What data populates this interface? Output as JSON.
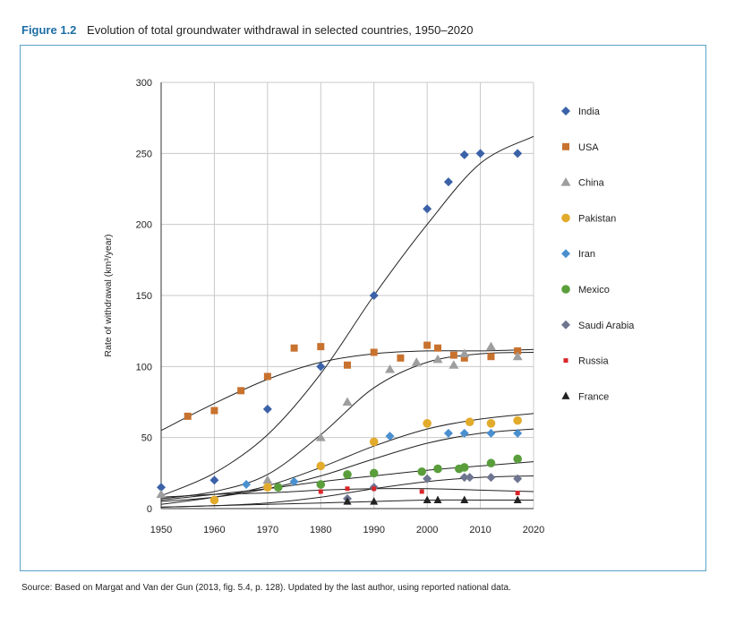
{
  "figure": {
    "number": "Figure 1.2",
    "title": "Evolution of total groundwater withdrawal in selected countries, 1950–2020",
    "source": "Source: Based on Margat and Van der Gun (2013, fig. 5.4, p. 128). Updated by the last author, using reported national data."
  },
  "colors": {
    "accent": "#1c6ea4",
    "frame": "#5ba3c9"
  },
  "chart_data": {
    "type": "scatter",
    "title": "",
    "xlabel": "",
    "ylabel": "Rate of withdrawal (km³/year)",
    "xlim": [
      1950,
      2020
    ],
    "ylim": [
      0,
      300
    ],
    "xticks": [
      1950,
      1960,
      1970,
      1980,
      1990,
      2000,
      2010,
      2020
    ],
    "yticks": [
      0,
      50,
      100,
      150,
      200,
      250,
      300
    ],
    "grid": true,
    "legend_position": "right",
    "series": [
      {
        "name": "India",
        "marker": "diamond",
        "color": "#3b62a8",
        "points": [
          [
            1950,
            15
          ],
          [
            1960,
            20
          ],
          [
            1970,
            70
          ],
          [
            1980,
            100
          ],
          [
            1990,
            150
          ],
          [
            2000,
            211
          ],
          [
            2004,
            230
          ],
          [
            2007,
            249
          ],
          [
            2010,
            250
          ],
          [
            2017,
            250
          ]
        ],
        "trend": [
          [
            1950,
            9
          ],
          [
            1960,
            25
          ],
          [
            1970,
            52
          ],
          [
            1980,
            95
          ],
          [
            1990,
            150
          ],
          [
            2000,
            200
          ],
          [
            2010,
            243
          ],
          [
            2020,
            262
          ]
        ]
      },
      {
        "name": "USA",
        "marker": "square",
        "color": "#c8722f",
        "points": [
          [
            1955,
            65
          ],
          [
            1960,
            69
          ],
          [
            1965,
            83
          ],
          [
            1970,
            93
          ],
          [
            1975,
            113
          ],
          [
            1980,
            114
          ],
          [
            1985,
            101
          ],
          [
            1990,
            110
          ],
          [
            1995,
            106
          ],
          [
            2000,
            115
          ],
          [
            2002,
            113
          ],
          [
            2005,
            108
          ],
          [
            2007,
            106
          ],
          [
            2012,
            107
          ],
          [
            2017,
            111
          ]
        ],
        "trend": [
          [
            1950,
            55
          ],
          [
            1960,
            74
          ],
          [
            1970,
            91
          ],
          [
            1980,
            103
          ],
          [
            1990,
            109
          ],
          [
            2000,
            111
          ],
          [
            2010,
            111
          ],
          [
            2020,
            112
          ]
        ]
      },
      {
        "name": "China",
        "marker": "triangle",
        "color": "#9e9e9e",
        "points": [
          [
            1950,
            10
          ],
          [
            1970,
            20
          ],
          [
            1980,
            50
          ],
          [
            1985,
            75
          ],
          [
            1993,
            98
          ],
          [
            1998,
            103
          ],
          [
            2002,
            105
          ],
          [
            2005,
            101
          ],
          [
            2007,
            109
          ],
          [
            2012,
            114
          ],
          [
            2017,
            107
          ]
        ],
        "trend": [
          [
            1950,
            7
          ],
          [
            1960,
            12
          ],
          [
            1970,
            24
          ],
          [
            1980,
            52
          ],
          [
            1990,
            85
          ],
          [
            2000,
            103
          ],
          [
            2010,
            109
          ],
          [
            2020,
            110
          ]
        ]
      },
      {
        "name": "Pakistan",
        "marker": "circle",
        "color": "#e2ab2b",
        "points": [
          [
            1960,
            6
          ],
          [
            1970,
            15
          ],
          [
            1980,
            30
          ],
          [
            1990,
            47
          ],
          [
            2000,
            60
          ],
          [
            2008,
            61
          ],
          [
            2012,
            60
          ],
          [
            2017,
            62
          ]
        ],
        "trend": [
          [
            1950,
            3
          ],
          [
            1960,
            8
          ],
          [
            1970,
            16
          ],
          [
            1980,
            29
          ],
          [
            1990,
            44
          ],
          [
            2000,
            56
          ],
          [
            2010,
            63
          ],
          [
            2020,
            67
          ]
        ]
      },
      {
        "name": "Iran",
        "marker": "diamond",
        "color": "#4a90cf",
        "points": [
          [
            1966,
            17
          ],
          [
            1975,
            19
          ],
          [
            1980,
            17
          ],
          [
            1993,
            51
          ],
          [
            2004,
            53
          ],
          [
            2007,
            53
          ],
          [
            2012,
            53
          ],
          [
            2017,
            53
          ]
        ],
        "trend": [
          [
            1950,
            5
          ],
          [
            1960,
            8
          ],
          [
            1970,
            14
          ],
          [
            1980,
            23
          ],
          [
            1990,
            35
          ],
          [
            2000,
            46
          ],
          [
            2010,
            53
          ],
          [
            2020,
            56
          ]
        ]
      },
      {
        "name": "Mexico",
        "marker": "circle",
        "color": "#5a9e3c",
        "points": [
          [
            1972,
            15
          ],
          [
            1980,
            17
          ],
          [
            1985,
            24
          ],
          [
            1990,
            25
          ],
          [
            1999,
            26
          ],
          [
            2002,
            28
          ],
          [
            2006,
            28
          ],
          [
            2007,
            29
          ],
          [
            2012,
            32
          ],
          [
            2017,
            35
          ]
        ],
        "trend": [
          [
            1950,
            6
          ],
          [
            1960,
            10
          ],
          [
            1970,
            14
          ],
          [
            1980,
            19
          ],
          [
            1990,
            23
          ],
          [
            2000,
            27
          ],
          [
            2010,
            30
          ],
          [
            2020,
            33
          ]
        ]
      },
      {
        "name": "Saudi Arabia",
        "marker": "diamond",
        "color": "#6e7590",
        "points": [
          [
            1985,
            7
          ],
          [
            1990,
            15
          ],
          [
            2000,
            21
          ],
          [
            2007,
            22
          ],
          [
            2008,
            22
          ],
          [
            2012,
            22
          ],
          [
            2017,
            21
          ]
        ],
        "trend": [
          [
            1950,
            1
          ],
          [
            1960,
            2
          ],
          [
            1970,
            4
          ],
          [
            1980,
            8
          ],
          [
            1990,
            14
          ],
          [
            2000,
            19
          ],
          [
            2010,
            22
          ],
          [
            2020,
            23
          ]
        ]
      },
      {
        "name": "Russia",
        "marker": "square-small",
        "color": "#d9262a",
        "points": [
          [
            1980,
            12
          ],
          [
            1985,
            14
          ],
          [
            1990,
            14
          ],
          [
            1999,
            12
          ],
          [
            2017,
            11
          ]
        ],
        "trend": [
          [
            1950,
            8
          ],
          [
            1960,
            10
          ],
          [
            1970,
            11
          ],
          [
            1980,
            13
          ],
          [
            1990,
            14
          ],
          [
            2000,
            14
          ],
          [
            2010,
            13
          ],
          [
            2020,
            12
          ]
        ]
      },
      {
        "name": "France",
        "marker": "triangle-filled",
        "color": "#222222",
        "points": [
          [
            1985,
            5
          ],
          [
            1990,
            5
          ],
          [
            2000,
            6
          ],
          [
            2002,
            6
          ],
          [
            2007,
            6
          ],
          [
            2017,
            6
          ]
        ],
        "trend": [
          [
            1950,
            1
          ],
          [
            1960,
            2
          ],
          [
            1970,
            3
          ],
          [
            1980,
            4
          ],
          [
            1990,
            5
          ],
          [
            2000,
            6
          ],
          [
            2010,
            6
          ],
          [
            2020,
            6
          ]
        ]
      }
    ]
  }
}
